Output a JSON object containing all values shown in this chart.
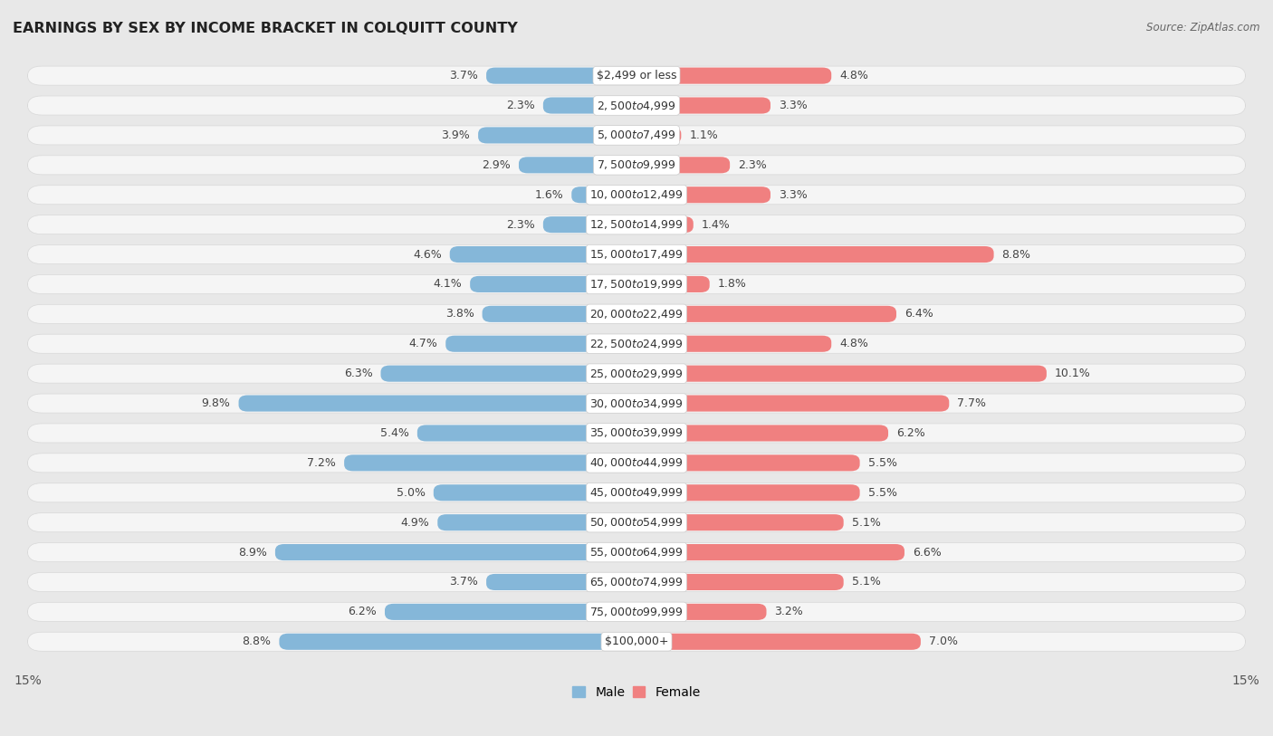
{
  "title": "EARNINGS BY SEX BY INCOME BRACKET IN COLQUITT COUNTY",
  "source": "Source: ZipAtlas.com",
  "categories": [
    "$2,499 or less",
    "$2,500 to $4,999",
    "$5,000 to $7,499",
    "$7,500 to $9,999",
    "$10,000 to $12,499",
    "$12,500 to $14,999",
    "$15,000 to $17,499",
    "$17,500 to $19,999",
    "$20,000 to $22,499",
    "$22,500 to $24,999",
    "$25,000 to $29,999",
    "$30,000 to $34,999",
    "$35,000 to $39,999",
    "$40,000 to $44,999",
    "$45,000 to $49,999",
    "$50,000 to $54,999",
    "$55,000 to $64,999",
    "$65,000 to $74,999",
    "$75,000 to $99,999",
    "$100,000+"
  ],
  "male_values": [
    3.7,
    2.3,
    3.9,
    2.9,
    1.6,
    2.3,
    4.6,
    4.1,
    3.8,
    4.7,
    6.3,
    9.8,
    5.4,
    7.2,
    5.0,
    4.9,
    8.9,
    3.7,
    6.2,
    8.8
  ],
  "female_values": [
    4.8,
    3.3,
    1.1,
    2.3,
    3.3,
    1.4,
    8.8,
    1.8,
    6.4,
    4.8,
    10.1,
    7.7,
    6.2,
    5.5,
    5.5,
    5.1,
    6.6,
    5.1,
    3.2,
    7.0
  ],
  "male_color": "#85b7d9",
  "female_color": "#f08080",
  "male_label": "Male",
  "female_label": "Female",
  "axis_max": 15.0,
  "bg_color": "#e8e8e8",
  "row_bg_color": "#f5f5f5",
  "row_sep_color": "#d8d8d8",
  "label_fontsize": 9.0,
  "category_fontsize": 9.0,
  "title_fontsize": 11.5,
  "value_color": "#444444"
}
